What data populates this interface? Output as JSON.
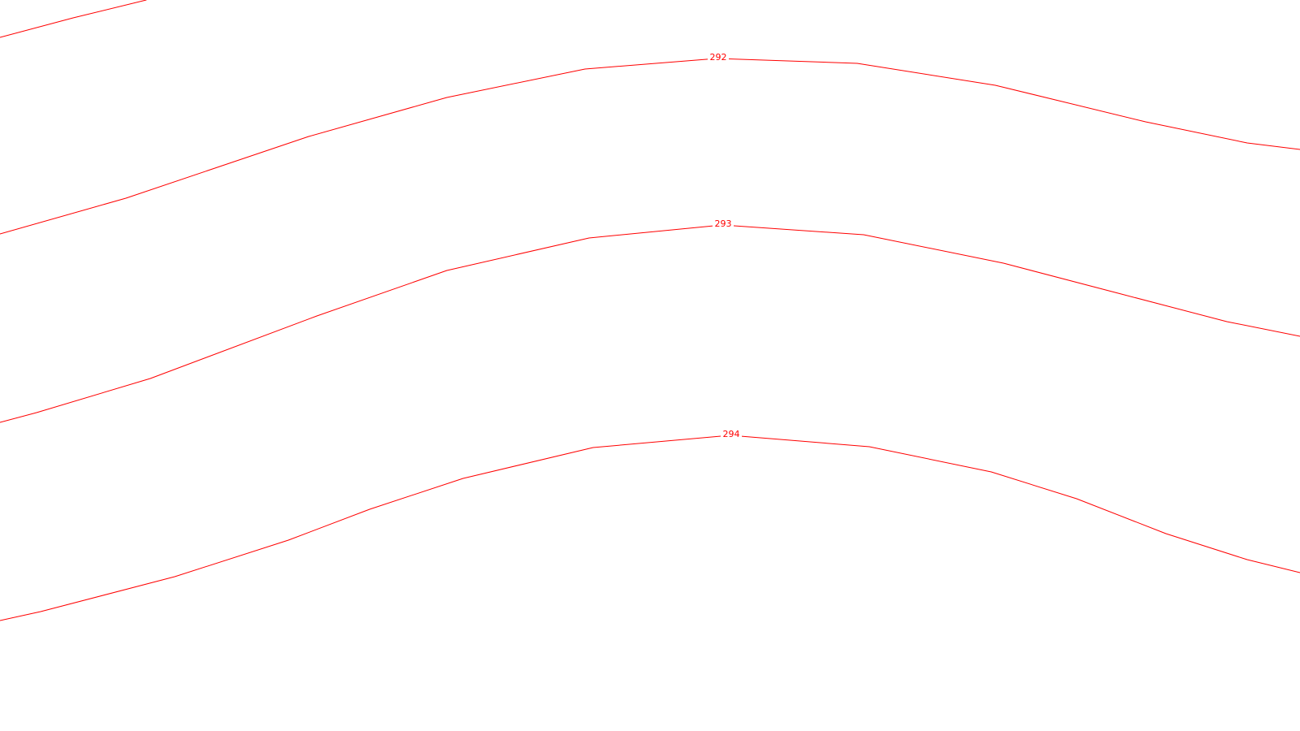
{
  "map": {
    "line_color": "#ff0000",
    "background_color": "#ffffff",
    "contours": [
      {
        "id": "upper-partial",
        "label": ""
      },
      {
        "id": "contour-292",
        "label": "292"
      },
      {
        "id": "contour-293",
        "label": "293"
      },
      {
        "id": "contour-294",
        "label": "294"
      }
    ]
  }
}
